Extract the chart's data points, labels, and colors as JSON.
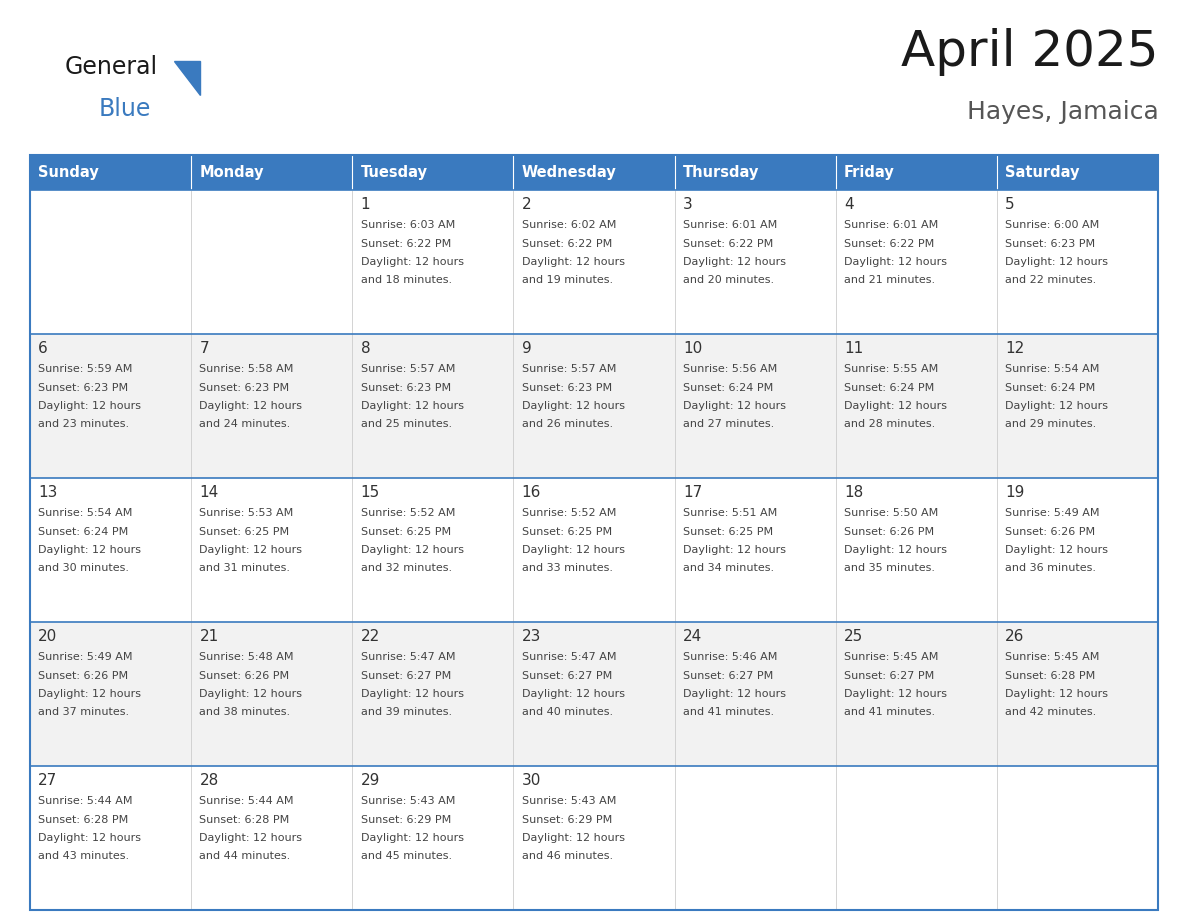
{
  "title": "April 2025",
  "subtitle": "Hayes, Jamaica",
  "days_of_week": [
    "Sunday",
    "Monday",
    "Tuesday",
    "Wednesday",
    "Thursday",
    "Friday",
    "Saturday"
  ],
  "header_bg": "#3a7abf",
  "header_text": "#ffffff",
  "cell_bg_white": "#ffffff",
  "cell_bg_gray": "#f2f2f2",
  "border_color": "#3a7abf",
  "text_color": "#444444",
  "day_num_color": "#333333",
  "calendar_data": [
    [
      {
        "day": "",
        "sunrise": "",
        "sunset": "",
        "daylight": ""
      },
      {
        "day": "",
        "sunrise": "",
        "sunset": "",
        "daylight": ""
      },
      {
        "day": "1",
        "sunrise": "6:03 AM",
        "sunset": "6:22 PM",
        "daylight": "12 hours and 18 minutes."
      },
      {
        "day": "2",
        "sunrise": "6:02 AM",
        "sunset": "6:22 PM",
        "daylight": "12 hours and 19 minutes."
      },
      {
        "day": "3",
        "sunrise": "6:01 AM",
        "sunset": "6:22 PM",
        "daylight": "12 hours and 20 minutes."
      },
      {
        "day": "4",
        "sunrise": "6:01 AM",
        "sunset": "6:22 PM",
        "daylight": "12 hours and 21 minutes."
      },
      {
        "day": "5",
        "sunrise": "6:00 AM",
        "sunset": "6:23 PM",
        "daylight": "12 hours and 22 minutes."
      }
    ],
    [
      {
        "day": "6",
        "sunrise": "5:59 AM",
        "sunset": "6:23 PM",
        "daylight": "12 hours and 23 minutes."
      },
      {
        "day": "7",
        "sunrise": "5:58 AM",
        "sunset": "6:23 PM",
        "daylight": "12 hours and 24 minutes."
      },
      {
        "day": "8",
        "sunrise": "5:57 AM",
        "sunset": "6:23 PM",
        "daylight": "12 hours and 25 minutes."
      },
      {
        "day": "9",
        "sunrise": "5:57 AM",
        "sunset": "6:23 PM",
        "daylight": "12 hours and 26 minutes."
      },
      {
        "day": "10",
        "sunrise": "5:56 AM",
        "sunset": "6:24 PM",
        "daylight": "12 hours and 27 minutes."
      },
      {
        "day": "11",
        "sunrise": "5:55 AM",
        "sunset": "6:24 PM",
        "daylight": "12 hours and 28 minutes."
      },
      {
        "day": "12",
        "sunrise": "5:54 AM",
        "sunset": "6:24 PM",
        "daylight": "12 hours and 29 minutes."
      }
    ],
    [
      {
        "day": "13",
        "sunrise": "5:54 AM",
        "sunset": "6:24 PM",
        "daylight": "12 hours and 30 minutes."
      },
      {
        "day": "14",
        "sunrise": "5:53 AM",
        "sunset": "6:25 PM",
        "daylight": "12 hours and 31 minutes."
      },
      {
        "day": "15",
        "sunrise": "5:52 AM",
        "sunset": "6:25 PM",
        "daylight": "12 hours and 32 minutes."
      },
      {
        "day": "16",
        "sunrise": "5:52 AM",
        "sunset": "6:25 PM",
        "daylight": "12 hours and 33 minutes."
      },
      {
        "day": "17",
        "sunrise": "5:51 AM",
        "sunset": "6:25 PM",
        "daylight": "12 hours and 34 minutes."
      },
      {
        "day": "18",
        "sunrise": "5:50 AM",
        "sunset": "6:26 PM",
        "daylight": "12 hours and 35 minutes."
      },
      {
        "day": "19",
        "sunrise": "5:49 AM",
        "sunset": "6:26 PM",
        "daylight": "12 hours and 36 minutes."
      }
    ],
    [
      {
        "day": "20",
        "sunrise": "5:49 AM",
        "sunset": "6:26 PM",
        "daylight": "12 hours and 37 minutes."
      },
      {
        "day": "21",
        "sunrise": "5:48 AM",
        "sunset": "6:26 PM",
        "daylight": "12 hours and 38 minutes."
      },
      {
        "day": "22",
        "sunrise": "5:47 AM",
        "sunset": "6:27 PM",
        "daylight": "12 hours and 39 minutes."
      },
      {
        "day": "23",
        "sunrise": "5:47 AM",
        "sunset": "6:27 PM",
        "daylight": "12 hours and 40 minutes."
      },
      {
        "day": "24",
        "sunrise": "5:46 AM",
        "sunset": "6:27 PM",
        "daylight": "12 hours and 41 minutes."
      },
      {
        "day": "25",
        "sunrise": "5:45 AM",
        "sunset": "6:27 PM",
        "daylight": "12 hours and 41 minutes."
      },
      {
        "day": "26",
        "sunrise": "5:45 AM",
        "sunset": "6:28 PM",
        "daylight": "12 hours and 42 minutes."
      }
    ],
    [
      {
        "day": "27",
        "sunrise": "5:44 AM",
        "sunset": "6:28 PM",
        "daylight": "12 hours and 43 minutes."
      },
      {
        "day": "28",
        "sunrise": "5:44 AM",
        "sunset": "6:28 PM",
        "daylight": "12 hours and 44 minutes."
      },
      {
        "day": "29",
        "sunrise": "5:43 AM",
        "sunset": "6:29 PM",
        "daylight": "12 hours and 45 minutes."
      },
      {
        "day": "30",
        "sunrise": "5:43 AM",
        "sunset": "6:29 PM",
        "daylight": "12 hours and 46 minutes."
      },
      {
        "day": "",
        "sunrise": "",
        "sunset": "",
        "daylight": ""
      },
      {
        "day": "",
        "sunrise": "",
        "sunset": "",
        "daylight": ""
      },
      {
        "day": "",
        "sunrise": "",
        "sunset": "",
        "daylight": ""
      }
    ]
  ],
  "logo_text_general": "General",
  "logo_text_blue": "Blue",
  "logo_color_general": "#1a1a1a",
  "logo_color_blue": "#3a7abf",
  "logo_triangle_color": "#3a7abf",
  "figsize": [
    11.88,
    9.18
  ],
  "dpi": 100
}
